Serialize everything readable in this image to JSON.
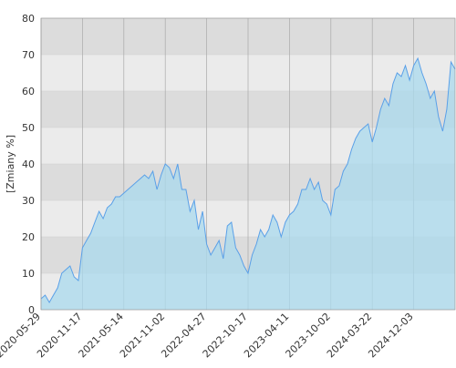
{
  "chart_data": {
    "type": "area",
    "y_label": "[Zmiany %]",
    "categories": [
      "2020-05-29",
      null,
      null,
      null,
      null,
      null,
      null,
      null,
      null,
      null,
      "2020-11-17",
      null,
      null,
      null,
      null,
      null,
      null,
      null,
      null,
      null,
      "2021-05-14",
      null,
      null,
      null,
      null,
      null,
      null,
      null,
      null,
      null,
      "2021-11-02",
      null,
      null,
      null,
      null,
      null,
      null,
      null,
      null,
      null,
      "2022-04-27",
      null,
      null,
      null,
      null,
      null,
      null,
      null,
      null,
      null,
      "2022-10-17",
      null,
      null,
      null,
      null,
      null,
      null,
      null,
      null,
      null,
      "2023-04-11",
      null,
      null,
      null,
      null,
      null,
      null,
      null,
      null,
      null,
      "2023-10-02",
      null,
      null,
      null,
      null,
      null,
      null,
      null,
      null,
      null,
      "2024-03-22",
      null,
      null,
      null,
      null,
      null,
      null,
      null,
      null,
      null,
      "2024-12-03",
      null,
      null,
      null,
      null,
      null,
      null,
      null,
      null,
      null,
      null
    ],
    "series": [
      {
        "color": "#5aa0e8",
        "fill": "#a9d9ee",
        "values": [
          3,
          4,
          2,
          4,
          6,
          10,
          11,
          12,
          9,
          8,
          17,
          19,
          21,
          24,
          27,
          25,
          28,
          29,
          31,
          31,
          32,
          33,
          34,
          35,
          36,
          37,
          36,
          38,
          33,
          37,
          40,
          39,
          36,
          40,
          33,
          33,
          27,
          30,
          22,
          27,
          18,
          15,
          17,
          19,
          14,
          23,
          24,
          17,
          15,
          12,
          10,
          15,
          18,
          22,
          20,
          22,
          26,
          24,
          20,
          24,
          26,
          27,
          29,
          33,
          33,
          36,
          33,
          35,
          30,
          29,
          26,
          33,
          34,
          38,
          40,
          44,
          47,
          49,
          50,
          51,
          46,
          50,
          55,
          58,
          56,
          62,
          65,
          64,
          67,
          63,
          67,
          69,
          65,
          62,
          58,
          60,
          53,
          49,
          55,
          68,
          66
        ]
      }
    ],
    "ylim": [
      0,
      80
    ],
    "yticks": [
      0,
      10,
      20,
      30,
      40,
      50,
      60,
      70,
      80
    ],
    "grid": true
  }
}
